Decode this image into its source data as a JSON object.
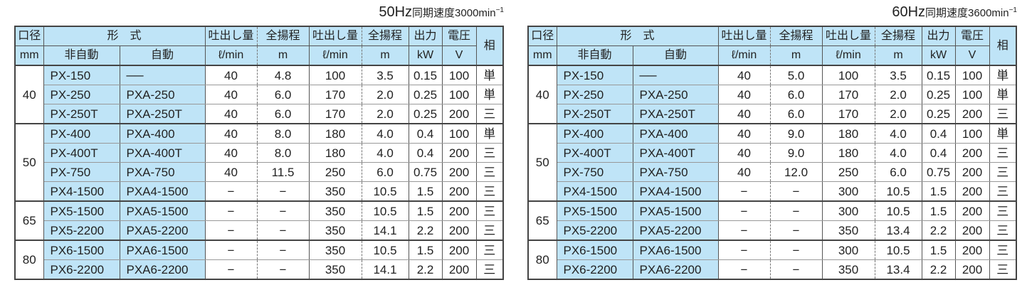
{
  "headers": {
    "bore": "口径",
    "bore_unit": "mm",
    "model": "形　式",
    "manual": "非自動",
    "auto": "自動",
    "flow": "吐出し量",
    "flow_unit": "ℓ/min",
    "head": "全揚程",
    "head_unit": "m",
    "output": "出力",
    "output_unit": "kW",
    "voltage": "電圧",
    "voltage_unit": "V",
    "phase": "相"
  },
  "colors": {
    "model_bg": "#bfe4f7"
  },
  "tables": [
    {
      "title_hz": "50Hz",
      "title_rest": "同期速度3000min",
      "title_sup": "−1",
      "groups": [
        {
          "bore": "40",
          "rows": [
            [
              "PX-150",
              "──",
              "40",
              "4.8",
              "100",
              "3.5",
              "0.15",
              "100",
              "単"
            ],
            [
              "PX-250",
              "PXA-250",
              "40",
              "6.0",
              "170",
              "2.0",
              "0.25",
              "100",
              "単"
            ],
            [
              "PX-250T",
              "PXA-250T",
              "40",
              "6.0",
              "170",
              "2.0",
              "0.25",
              "200",
              "三"
            ]
          ]
        },
        {
          "bore": "50",
          "rows": [
            [
              "PX-400",
              "PXA-400",
              "40",
              "8.0",
              "180",
              "4.0",
              "0.4",
              "100",
              "単"
            ],
            [
              "PX-400T",
              "PXA-400T",
              "40",
              "8.0",
              "180",
              "4.0",
              "0.4",
              "200",
              "三"
            ],
            [
              "PX-750",
              "PXA-750",
              "40",
              "11.5",
              "250",
              "6.0",
              "0.75",
              "200",
              "三"
            ],
            [
              "PX4-1500",
              "PXA4-1500",
              "−",
              "−",
              "350",
              "10.5",
              "1.5",
              "200",
              "三"
            ]
          ]
        },
        {
          "bore": "65",
          "rows": [
            [
              "PX5-1500",
              "PXA5-1500",
              "−",
              "−",
              "350",
              "10.5",
              "1.5",
              "200",
              "三"
            ],
            [
              "PX5-2200",
              "PXA5-2200",
              "−",
              "−",
              "350",
              "14.1",
              "2.2",
              "200",
              "三"
            ]
          ]
        },
        {
          "bore": "80",
          "rows": [
            [
              "PX6-1500",
              "PXA6-1500",
              "−",
              "−",
              "350",
              "10.5",
              "1.5",
              "200",
              "三"
            ],
            [
              "PX6-2200",
              "PXA6-2200",
              "−",
              "−",
              "350",
              "14.1",
              "2.2",
              "200",
              "三"
            ]
          ]
        }
      ]
    },
    {
      "title_hz": "60Hz",
      "title_rest": "同期速度3600min",
      "title_sup": "−1",
      "groups": [
        {
          "bore": "40",
          "rows": [
            [
              "PX-150",
              "──",
              "40",
              "5.0",
              "100",
              "3.5",
              "0.15",
              "100",
              "単"
            ],
            [
              "PX-250",
              "PXA-250",
              "40",
              "6.0",
              "170",
              "2.0",
              "0.25",
              "100",
              "単"
            ],
            [
              "PX-250T",
              "PXA-250T",
              "40",
              "6.0",
              "170",
              "2.0",
              "0.25",
              "200",
              "三"
            ]
          ]
        },
        {
          "bore": "50",
          "rows": [
            [
              "PX-400",
              "PXA-400",
              "40",
              "9.0",
              "180",
              "4.0",
              "0.4",
              "100",
              "単"
            ],
            [
              "PX-400T",
              "PXA-400T",
              "40",
              "9.0",
              "180",
              "4.0",
              "0.4",
              "200",
              "三"
            ],
            [
              "PX-750",
              "PXA-750",
              "40",
              "12.0",
              "250",
              "6.0",
              "0.75",
              "200",
              "三"
            ],
            [
              "PX4-1500",
              "PXA4-1500",
              "−",
              "−",
              "300",
              "10.5",
              "1.5",
              "200",
              "三"
            ]
          ]
        },
        {
          "bore": "65",
          "rows": [
            [
              "PX5-1500",
              "PXA5-1500",
              "−",
              "−",
              "300",
              "10.5",
              "1.5",
              "200",
              "三"
            ],
            [
              "PX5-2200",
              "PXA5-2200",
              "−",
              "−",
              "350",
              "13.4",
              "2.2",
              "200",
              "三"
            ]
          ]
        },
        {
          "bore": "80",
          "rows": [
            [
              "PX6-1500",
              "PXA6-1500",
              "−",
              "−",
              "300",
              "10.5",
              "1.5",
              "200",
              "三"
            ],
            [
              "PX6-2200",
              "PXA6-2200",
              "−",
              "−",
              "350",
              "13.4",
              "2.2",
              "200",
              "三"
            ]
          ]
        }
      ]
    }
  ]
}
